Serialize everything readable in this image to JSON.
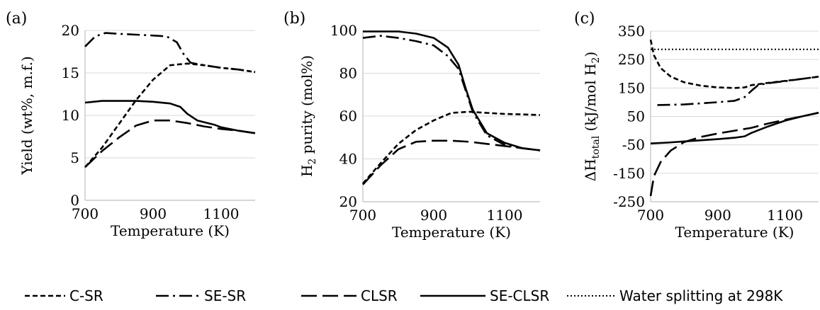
{
  "chart_data": [
    {
      "panel_label": "(a)",
      "type": "line",
      "xlabel": "Temperature (K)",
      "ylabel": "Yield (wt%, m.f.)",
      "xlim": [
        700,
        1200
      ],
      "ylim": [
        0,
        20
      ],
      "x_ticks": [
        "700",
        "900",
        "1100"
      ],
      "y_ticks": [
        "0",
        "5",
        "10",
        "15",
        "20"
      ],
      "x_tick_values": [
        700,
        900,
        1100
      ],
      "y_tick_values": [
        0,
        5,
        10,
        15,
        20
      ],
      "grid": "horizontal",
      "series": [
        {
          "name": "C-SR",
          "style": "short-dash",
          "points": [
            [
              700,
              3.9
            ],
            [
              750,
              6.2
            ],
            [
              800,
              9.0
            ],
            [
              850,
              11.8
            ],
            [
              900,
              14.2
            ],
            [
              950,
              15.9
            ],
            [
              1000,
              16.1
            ],
            [
              1050,
              15.9
            ],
            [
              1100,
              15.6
            ],
            [
              1150,
              15.4
            ],
            [
              1200,
              15.1
            ]
          ]
        },
        {
          "name": "SE-SR",
          "style": "dash-dot",
          "points": [
            [
              700,
              18.1
            ],
            [
              730,
              19.3
            ],
            [
              760,
              19.7
            ],
            [
              800,
              19.6
            ],
            [
              850,
              19.5
            ],
            [
              900,
              19.4
            ],
            [
              940,
              19.3
            ],
            [
              970,
              18.6
            ],
            [
              990,
              17.2
            ],
            [
              1010,
              16.2
            ],
            [
              1050,
              15.9
            ],
            [
              1100,
              15.6
            ],
            [
              1150,
              15.4
            ],
            [
              1200,
              15.1
            ]
          ]
        },
        {
          "name": "CLSR",
          "style": "long-dash",
          "points": [
            [
              700,
              3.9
            ],
            [
              750,
              5.8
            ],
            [
              800,
              7.4
            ],
            [
              850,
              8.8
            ],
            [
              900,
              9.4
            ],
            [
              950,
              9.4
            ],
            [
              1000,
              9.1
            ],
            [
              1050,
              8.7
            ],
            [
              1100,
              8.4
            ],
            [
              1150,
              8.2
            ],
            [
              1200,
              7.9
            ]
          ]
        },
        {
          "name": "SE-CLSR",
          "style": "solid",
          "points": [
            [
              700,
              11.5
            ],
            [
              750,
              11.7
            ],
            [
              800,
              11.7
            ],
            [
              850,
              11.7
            ],
            [
              900,
              11.6
            ],
            [
              950,
              11.4
            ],
            [
              980,
              11.0
            ],
            [
              1000,
              10.2
            ],
            [
              1030,
              9.4
            ],
            [
              1080,
              8.9
            ],
            [
              1100,
              8.6
            ],
            [
              1150,
              8.2
            ],
            [
              1200,
              7.9
            ]
          ]
        }
      ]
    },
    {
      "panel_label": "(b)",
      "type": "line",
      "xlabel": "Temperature (K)",
      "ylabel_main": "H",
      "ylabel_sub": "2",
      "ylabel_rest": " purity (mol%)",
      "xlim": [
        700,
        1200
      ],
      "ylim": [
        20,
        100
      ],
      "x_ticks": [
        "700",
        "900",
        "1100"
      ],
      "y_ticks": [
        "20",
        "40",
        "60",
        "80",
        "100"
      ],
      "x_tick_values": [
        700,
        900,
        1100
      ],
      "y_tick_values": [
        20,
        40,
        60,
        80,
        100
      ],
      "grid": "horizontal",
      "series": [
        {
          "name": "C-SR",
          "style": "short-dash",
          "points": [
            [
              700,
              28.5
            ],
            [
              750,
              38
            ],
            [
              800,
              47
            ],
            [
              850,
              53.5
            ],
            [
              900,
              58
            ],
            [
              950,
              61.5
            ],
            [
              1000,
              62
            ],
            [
              1050,
              61.5
            ],
            [
              1100,
              61
            ],
            [
              1150,
              60.8
            ],
            [
              1200,
              60.5
            ]
          ]
        },
        {
          "name": "SE-SR",
          "style": "dash-dot",
          "points": [
            [
              700,
              96.5
            ],
            [
              750,
              97.5
            ],
            [
              800,
              96.5
            ],
            [
              850,
              95
            ],
            [
              900,
              93
            ],
            [
              940,
              88
            ],
            [
              970,
              82
            ],
            [
              990,
              72
            ],
            [
              1010,
              62
            ],
            [
              1050,
              51
            ],
            [
              1100,
              46.5
            ],
            [
              1150,
              45
            ],
            [
              1200,
              44
            ]
          ]
        },
        {
          "name": "CLSR",
          "style": "long-dash",
          "points": [
            [
              700,
              28
            ],
            [
              750,
              37
            ],
            [
              800,
              44.5
            ],
            [
              850,
              48
            ],
            [
              900,
              48.5
            ],
            [
              950,
              48.5
            ],
            [
              1000,
              48
            ],
            [
              1050,
              47
            ],
            [
              1100,
              46
            ],
            [
              1150,
              45
            ],
            [
              1200,
              44
            ]
          ]
        },
        {
          "name": "SE-CLSR",
          "style": "solid",
          "points": [
            [
              700,
              99.5
            ],
            [
              750,
              99.5
            ],
            [
              800,
              99.5
            ],
            [
              850,
              98.5
            ],
            [
              900,
              96.5
            ],
            [
              940,
              92
            ],
            [
              970,
              84
            ],
            [
              990,
              73
            ],
            [
              1010,
              63
            ],
            [
              1050,
              52
            ],
            [
              1100,
              47.5
            ],
            [
              1150,
              45
            ],
            [
              1200,
              44
            ]
          ]
        }
      ]
    },
    {
      "panel_label": "(c)",
      "type": "line",
      "xlabel": "Temperature (K)",
      "ylabel_main": "ΔH",
      "ylabel_sub": "total",
      "ylabel_rest": " (kJ/mol H",
      "ylabel_sub2": "2",
      "ylabel_end": ")",
      "xlim": [
        700,
        1200
      ],
      "ylim": [
        -250,
        350
      ],
      "x_ticks": [
        "700",
        "900",
        "1100"
      ],
      "y_ticks": [
        "-250",
        "-150",
        "-50",
        "50",
        "150",
        "250",
        "350"
      ],
      "x_tick_values": [
        700,
        900,
        1100
      ],
      "y_tick_values": [
        -250,
        -150,
        -50,
        50,
        150,
        250,
        350
      ],
      "grid": "horizontal",
      "series": [
        {
          "name": "C-SR",
          "style": "short-dash",
          "points": [
            [
              700,
              320
            ],
            [
              710,
              265
            ],
            [
              730,
              220
            ],
            [
              760,
              190
            ],
            [
              800,
              170
            ],
            [
              850,
              158
            ],
            [
              900,
              152
            ],
            [
              950,
              150
            ],
            [
              980,
              152
            ],
            [
              1000,
              160
            ],
            [
              1050,
              168
            ],
            [
              1100,
              175
            ],
            [
              1150,
              182
            ],
            [
              1200,
              190
            ]
          ]
        },
        {
          "name": "SE-SR",
          "style": "dash-dot",
          "points": [
            [
              720,
              90
            ],
            [
              800,
              92
            ],
            [
              850,
              96
            ],
            [
              900,
              100
            ],
            [
              950,
              105
            ],
            [
              980,
              118
            ],
            [
              1000,
              140
            ],
            [
              1020,
              160
            ],
            [
              1050,
              167
            ],
            [
              1100,
              174
            ],
            [
              1150,
              182
            ],
            [
              1200,
              190
            ]
          ]
        },
        {
          "name": "CLSR",
          "style": "long-dash",
          "points": [
            [
              700,
              -230
            ],
            [
              710,
              -160
            ],
            [
              730,
              -110
            ],
            [
              760,
              -70
            ],
            [
              800,
              -40
            ],
            [
              850,
              -22
            ],
            [
              900,
              -10
            ],
            [
              950,
              0
            ],
            [
              1000,
              10
            ],
            [
              1050,
              25
            ],
            [
              1100,
              38
            ],
            [
              1150,
              50
            ],
            [
              1200,
              63
            ]
          ]
        },
        {
          "name": "SE-CLSR",
          "style": "solid",
          "points": [
            [
              700,
              -45
            ],
            [
              750,
              -42
            ],
            [
              800,
              -38
            ],
            [
              850,
              -34
            ],
            [
              900,
              -30
            ],
            [
              950,
              -25
            ],
            [
              980,
              -20
            ],
            [
              1000,
              -8
            ],
            [
              1050,
              15
            ],
            [
              1100,
              35
            ],
            [
              1150,
              50
            ],
            [
              1200,
              63
            ]
          ]
        },
        {
          "name": "Water splitting at 298K",
          "style": "dotted",
          "points": [
            [
              700,
              286
            ],
            [
              1200,
              286
            ]
          ]
        }
      ]
    }
  ],
  "legend": [
    {
      "label": "C-SR",
      "style": "short-dash"
    },
    {
      "label": "SE-SR",
      "style": "dash-dot"
    },
    {
      "label": "CLSR",
      "style": "long-dash"
    },
    {
      "label": "SE-CLSR",
      "style": "solid"
    },
    {
      "label": "Water splitting at 298K",
      "style": "dotted"
    }
  ],
  "colors": {
    "line": "#000000",
    "grid": "#d9d9d9",
    "axis": "#bfbfbf"
  }
}
